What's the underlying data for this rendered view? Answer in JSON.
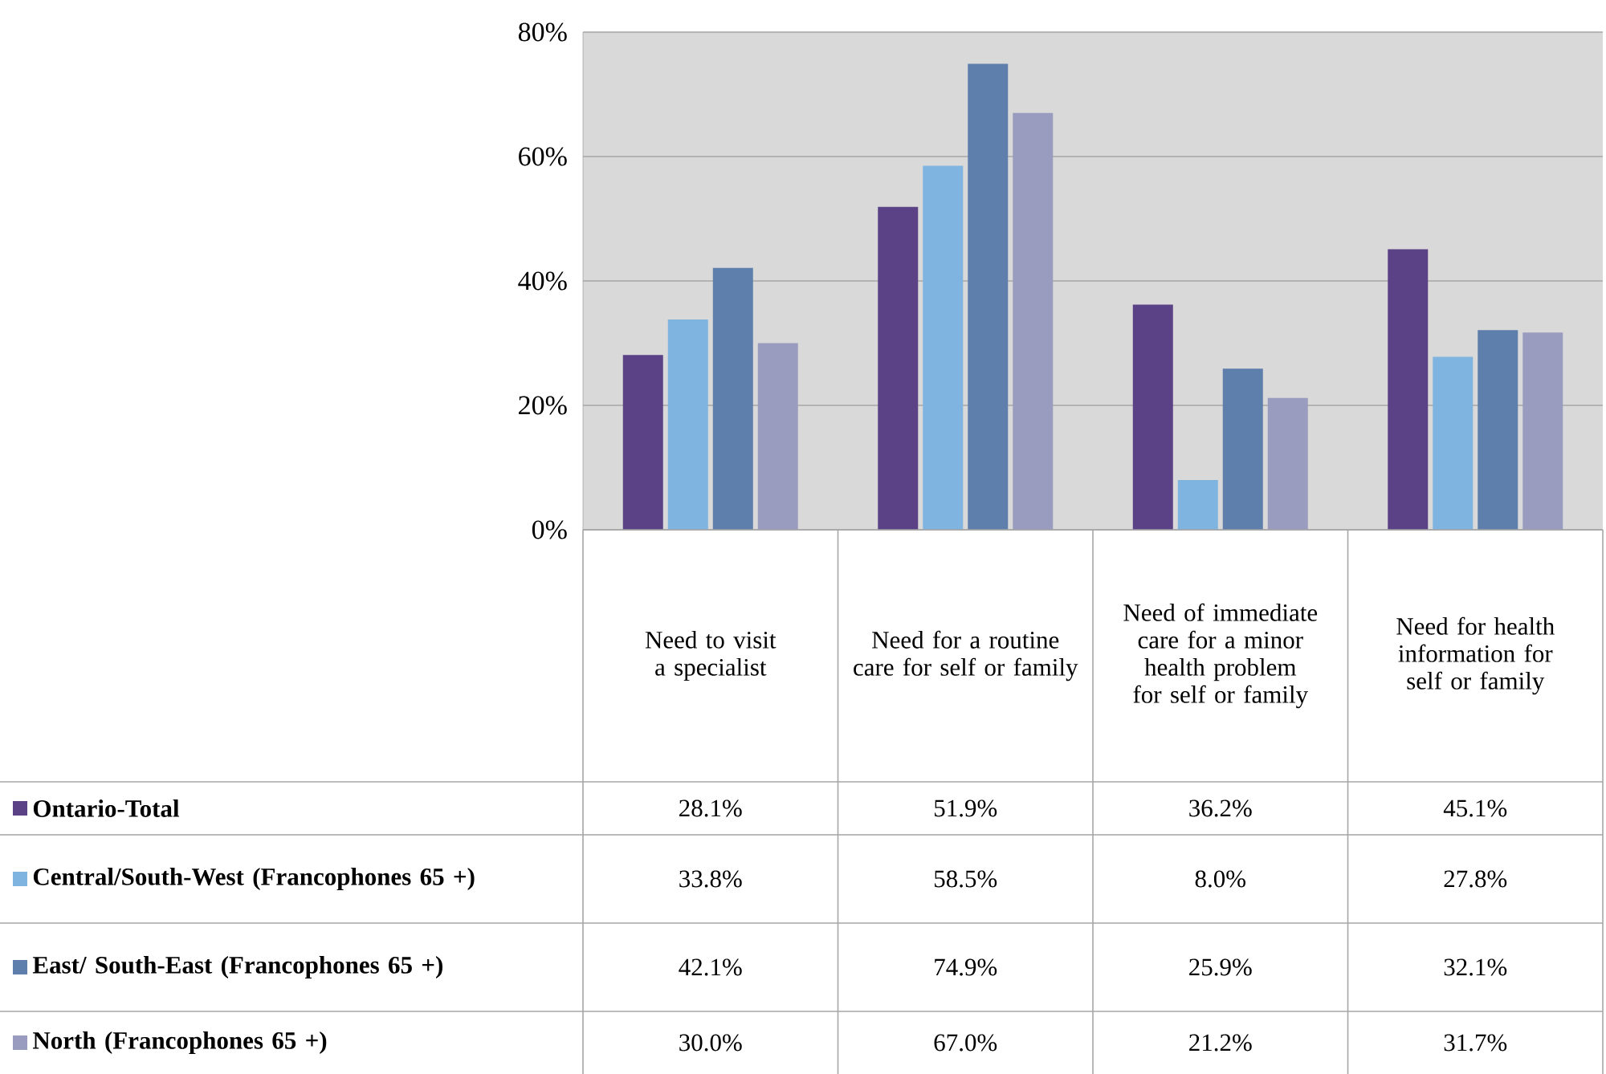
{
  "chart_data": {
    "type": "bar",
    "categories": [
      "Need to visit a specialist",
      "Need for a routine care for self or family",
      "Need of immediate care for a minor health problem for self or family",
      "Need for health information for self or family"
    ],
    "series": [
      {
        "name": "Ontario-Total",
        "color": "#5b4186",
        "values": [
          28.1,
          51.9,
          36.2,
          45.1
        ],
        "value_labels": [
          "28.1%",
          "51.9%",
          "36.2%",
          "45.1%"
        ]
      },
      {
        "name": "Central/South-West (Francophones 65 +)",
        "color": "#80b4e0",
        "values": [
          33.8,
          58.5,
          8.0,
          27.8
        ],
        "value_labels": [
          "33.8%",
          "58.5%",
          "8.0%",
          "27.8%"
        ]
      },
      {
        "name": "East/ South-East (Francophones 65 +)",
        "color": "#5e7fab",
        "values": [
          42.1,
          74.9,
          25.9,
          32.1
        ],
        "value_labels": [
          "42.1%",
          "74.9%",
          "25.9%",
          "32.1%"
        ]
      },
      {
        "name": "North (Francophones 65 +)",
        "color": "#9a9cbf",
        "values": [
          30.0,
          67.0,
          21.2,
          31.7
        ],
        "value_labels": [
          "30.0%",
          "67.0%",
          "21.2%",
          "31.7%"
        ]
      }
    ],
    "ylim": [
      0,
      80
    ],
    "yticks": [
      {
        "value": 0,
        "label": "0%"
      },
      {
        "value": 20,
        "label": "20%"
      },
      {
        "value": 40,
        "label": "40%"
      },
      {
        "value": 60,
        "label": "60%"
      },
      {
        "value": 80,
        "label": "80%"
      }
    ],
    "grid": "y",
    "legend": "bottom"
  }
}
